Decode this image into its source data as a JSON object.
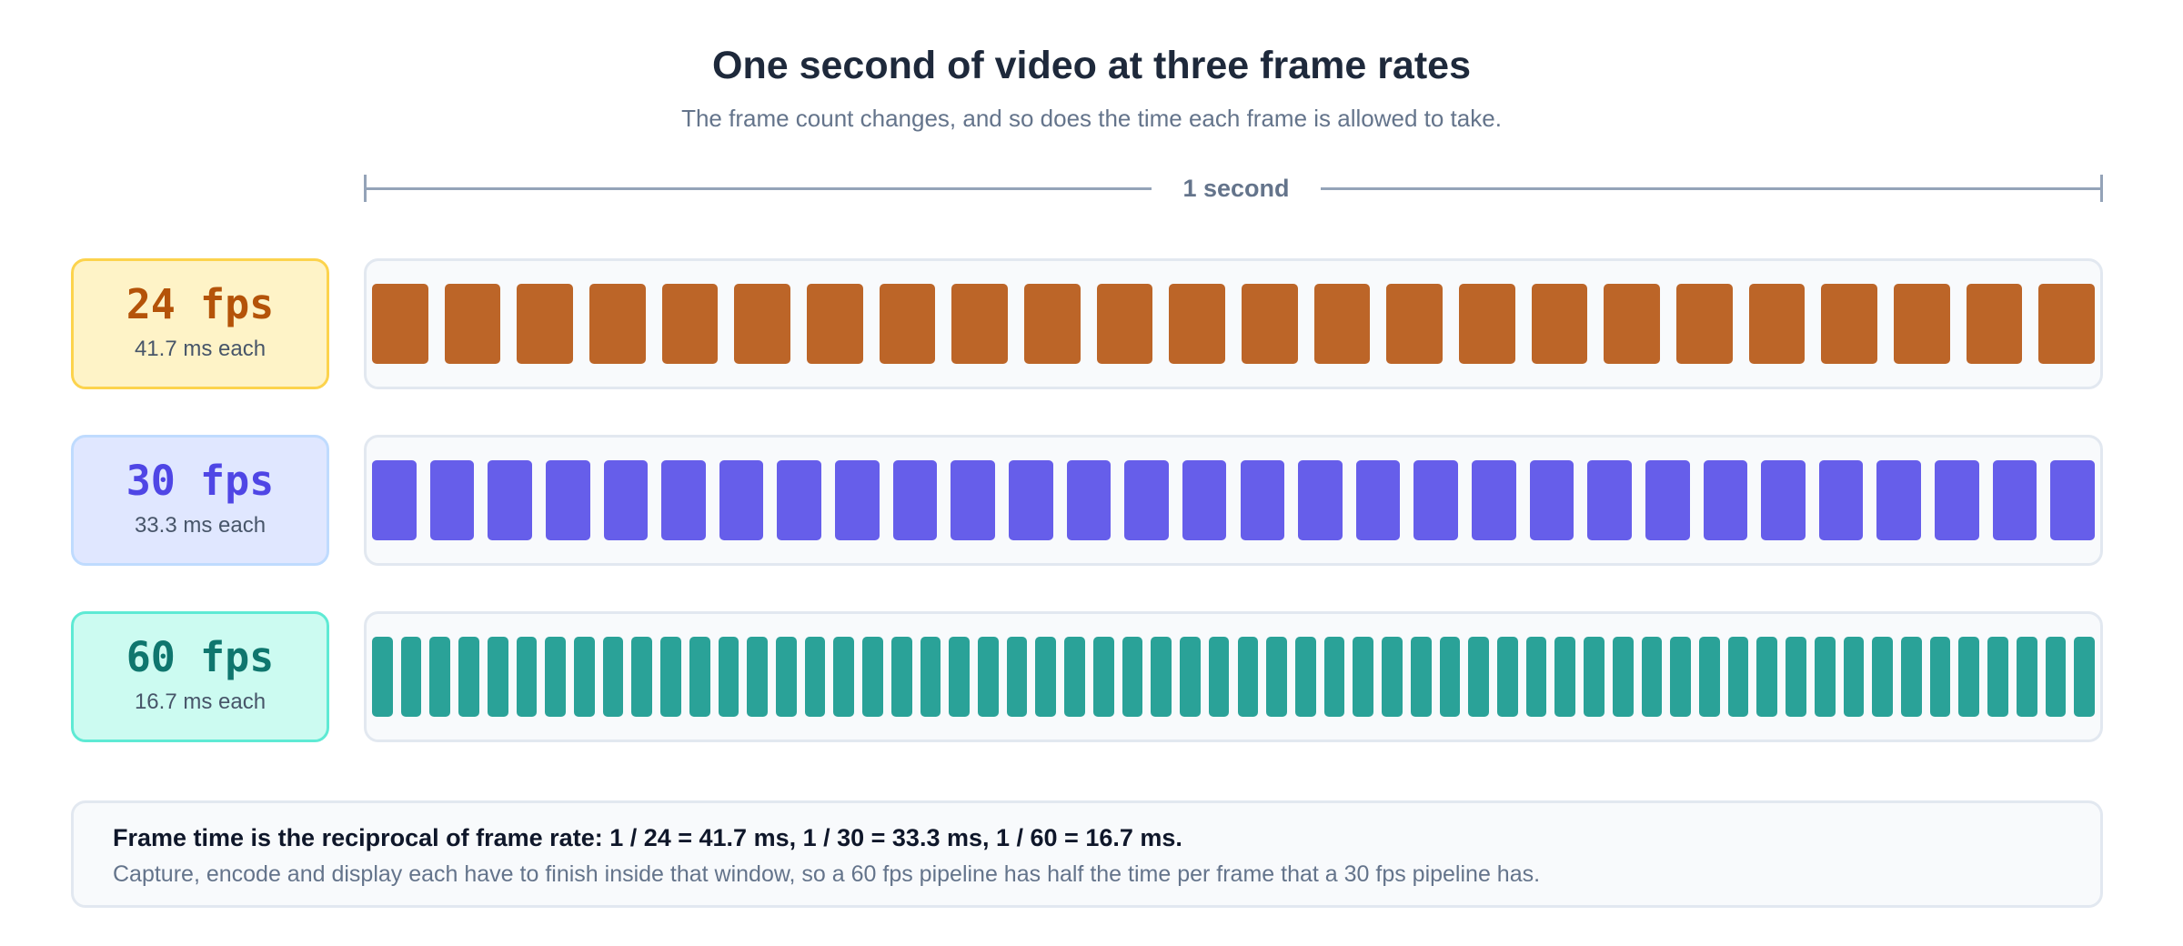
{
  "header": {
    "title": "One second of video at three frame rates",
    "subtitle": "The frame count changes, and so does the time each frame is allowed to take."
  },
  "ruler": {
    "label": "1 second"
  },
  "rows": [
    {
      "fps_label": "24 fps",
      "ms_label": "41.7 ms each",
      "frames": 24,
      "accent": "#b45309",
      "badge_bg": "#fef3c7",
      "badge_border": "#fcd34d",
      "frame_color": "#bc6528"
    },
    {
      "fps_label": "30 fps",
      "ms_label": "33.3 ms each",
      "frames": 30,
      "accent": "#4f46e5",
      "badge_bg": "#e0e7ff",
      "badge_border": "#bfdbfe",
      "frame_color": "#665eea"
    },
    {
      "fps_label": "60 fps",
      "ms_label": "16.7 ms each",
      "frames": 60,
      "accent": "#0f766e",
      "badge_bg": "#ccfbf1",
      "badge_border": "#5eead4",
      "frame_color": "#2aa298"
    }
  ],
  "note": {
    "bold": "Frame time is the reciprocal of frame rate: 1 / 24 = 41.7 ms, 1 / 30 = 33.3 ms, 1 / 60 = 16.7 ms.",
    "body": "Capture, encode and display each have to finish inside that window, so a 60 fps pipeline has half the time per frame that a 30 fps pipeline has."
  }
}
